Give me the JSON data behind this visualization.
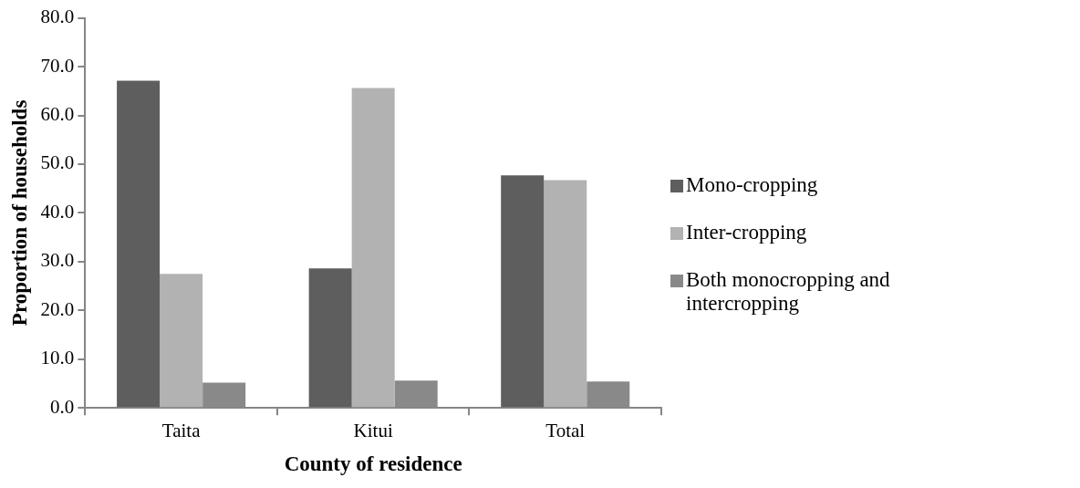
{
  "chart_data": {
    "type": "bar",
    "xlabel": "County of residence",
    "ylabel": "Proportion of households",
    "categories": [
      "Taita",
      "Kitui",
      "Total"
    ],
    "series": [
      {
        "name": "Mono-cropping",
        "color": "#5e5e5e",
        "values": [
          67.1,
          28.6,
          47.7
        ]
      },
      {
        "name": "Inter-cropping",
        "color": "#b2b2b2",
        "values": [
          27.5,
          65.6,
          46.7
        ]
      },
      {
        "name": "Both monocropping and intercropping",
        "color": "#898989",
        "values": [
          5.2,
          5.6,
          5.4
        ]
      }
    ],
    "ylim": [
      0,
      80
    ],
    "yticks": [
      {
        "value": 0,
        "label": "0.0"
      },
      {
        "value": 10,
        "label": "10.0"
      },
      {
        "value": 20,
        "label": "20.0"
      },
      {
        "value": 30,
        "label": "30.0"
      },
      {
        "value": 40,
        "label": "40.0"
      },
      {
        "value": 50,
        "label": "50.0"
      },
      {
        "value": 60,
        "label": "60.0"
      },
      {
        "value": 70,
        "label": "70.0"
      },
      {
        "value": 80,
        "label": "80.0"
      }
    ],
    "grid": false,
    "legend": "right"
  }
}
